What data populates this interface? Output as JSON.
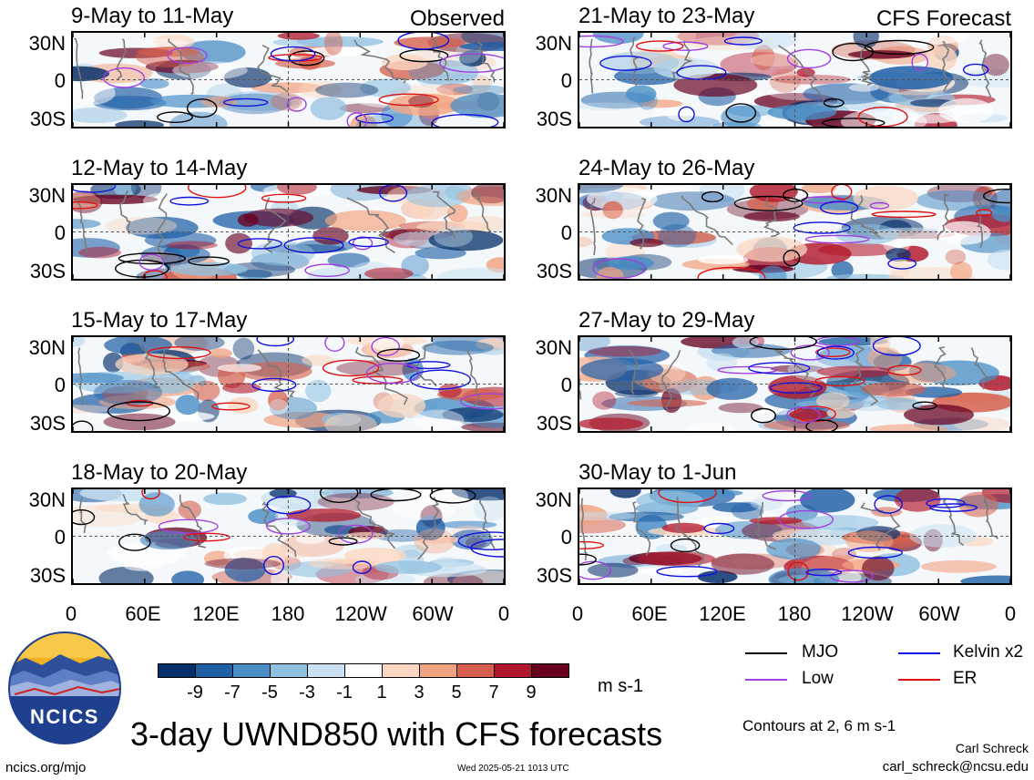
{
  "header": {
    "observed_label": "Observed",
    "forecast_label": "CFS Forecast"
  },
  "panels": [
    {
      "title": "9-May to 11-May",
      "column": "observed"
    },
    {
      "title": "12-May to 14-May",
      "column": "observed"
    },
    {
      "title": "15-May to 17-May",
      "column": "observed"
    },
    {
      "title": "18-May to 20-May",
      "column": "observed"
    },
    {
      "title": "21-May to 23-May",
      "column": "forecast"
    },
    {
      "title": "24-May to 26-May",
      "column": "forecast"
    },
    {
      "title": "27-May to 29-May",
      "column": "forecast"
    },
    {
      "title": "30-May to 1-Jun",
      "column": "forecast"
    }
  ],
  "lat_labels": [
    "30N",
    "0",
    "30S"
  ],
  "lon_labels": [
    "0",
    "60E",
    "120E",
    "180",
    "120W",
    "60W",
    "0"
  ],
  "colorbar": {
    "ticks": [
      "-9",
      "-7",
      "-5",
      "-3",
      "-1",
      "1",
      "3",
      "5",
      "7",
      "9"
    ],
    "colors": [
      "#08306b",
      "#1f5fa6",
      "#4a8ec6",
      "#8fc0e0",
      "#c8e0f0",
      "#ffffff",
      "#fbd7c0",
      "#f2a482",
      "#d6604d",
      "#b2182b",
      "#67001f"
    ],
    "unit": "m s-1"
  },
  "legend": {
    "items": [
      {
        "label": "MJO",
        "color": "#000000"
      },
      {
        "label": "Kelvin x2",
        "color": "#1010e0"
      },
      {
        "label": "Low",
        "color": "#a040e0"
      },
      {
        "label": "ER",
        "color": "#e01010"
      }
    ],
    "contours_note": "Contours at 2, 6 m s-1"
  },
  "footer": {
    "main_title": "3-day UWND850 with CFS forecasts",
    "logo_text": "NCICS",
    "url": "ncics.org/mjo",
    "timestamp": "Wed 2025-05-21 1013 UTC",
    "author": "Carl Schreck",
    "email": "carl_schreck@ncsu.edu"
  }
}
